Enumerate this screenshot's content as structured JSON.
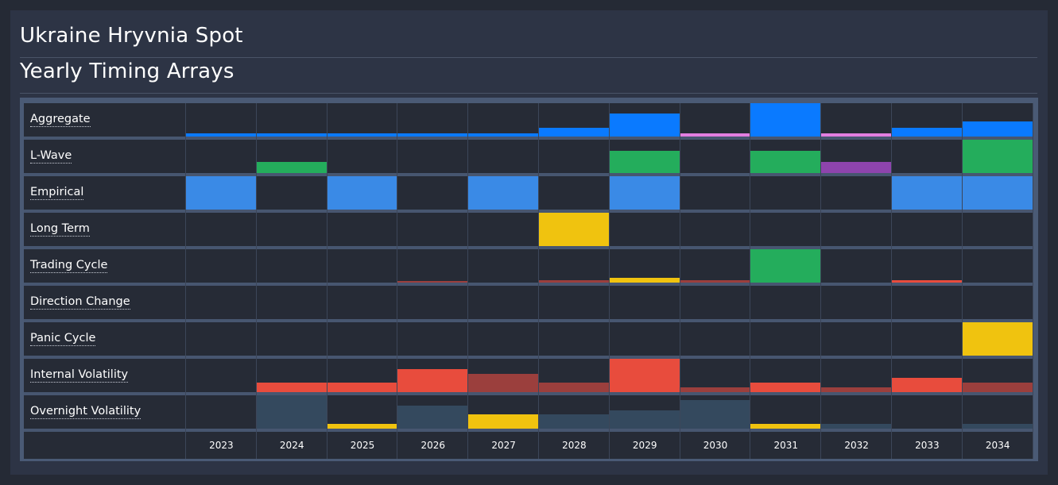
{
  "header": {
    "title": "Ukraine Hryvnia Spot",
    "subtitle": "Yearly Timing Arrays"
  },
  "chart_data": {
    "type": "heatmap",
    "years": [
      "2023",
      "2024",
      "2025",
      "2026",
      "2027",
      "2028",
      "2029",
      "2030",
      "2031",
      "2032",
      "2033",
      "2034"
    ],
    "colors": {
      "blue": "#0a7aff",
      "pink": "#e27ee0",
      "green": "#24ad5c",
      "purple": "#8e44ad",
      "emp_blue": "#3a8ae6",
      "yellow": "#f0c30f",
      "red": "#e84c3d",
      "dark_red": "#9b3f3d",
      "slate": "#34495e"
    },
    "rows": [
      {
        "label": "Aggregate",
        "cells": [
          {
            "v": 0.1,
            "c": "blue"
          },
          {
            "v": 0.1,
            "c": "blue"
          },
          {
            "v": 0.1,
            "c": "blue"
          },
          {
            "v": 0.1,
            "c": "blue"
          },
          {
            "v": 0.1,
            "c": "blue"
          },
          {
            "v": 0.25,
            "c": "blue"
          },
          {
            "v": 0.7,
            "c": "blue"
          },
          {
            "v": 0.1,
            "c": "pink"
          },
          {
            "v": 1.0,
            "c": "blue"
          },
          {
            "v": 0.1,
            "c": "pink"
          },
          {
            "v": 0.25,
            "c": "blue"
          },
          {
            "v": 0.45,
            "c": "blue"
          }
        ]
      },
      {
        "label": "L-Wave",
        "cells": [
          {
            "v": 0,
            "c": "green"
          },
          {
            "v": 0.33,
            "c": "green"
          },
          {
            "v": 0,
            "c": "green"
          },
          {
            "v": 0,
            "c": "green"
          },
          {
            "v": 0,
            "c": "green"
          },
          {
            "v": 0,
            "c": "green"
          },
          {
            "v": 0.67,
            "c": "green"
          },
          {
            "v": 0,
            "c": "green"
          },
          {
            "v": 0.67,
            "c": "green"
          },
          {
            "v": 0.33,
            "c": "purple"
          },
          {
            "v": 0,
            "c": "green"
          },
          {
            "v": 1.0,
            "c": "green"
          }
        ]
      },
      {
        "label": "Empirical",
        "cells": [
          {
            "v": 1,
            "c": "emp_blue"
          },
          {
            "v": 0,
            "c": "emp_blue"
          },
          {
            "v": 1,
            "c": "emp_blue"
          },
          {
            "v": 0,
            "c": "emp_blue"
          },
          {
            "v": 1,
            "c": "emp_blue"
          },
          {
            "v": 0,
            "c": "emp_blue"
          },
          {
            "v": 1,
            "c": "emp_blue"
          },
          {
            "v": 0,
            "c": "emp_blue"
          },
          {
            "v": 0,
            "c": "emp_blue"
          },
          {
            "v": 0,
            "c": "emp_blue"
          },
          {
            "v": 1,
            "c": "emp_blue"
          },
          {
            "v": 1,
            "c": "emp_blue"
          }
        ]
      },
      {
        "label": "Long Term",
        "cells": [
          {
            "v": 0,
            "c": "yellow"
          },
          {
            "v": 0,
            "c": "yellow"
          },
          {
            "v": 0,
            "c": "yellow"
          },
          {
            "v": 0,
            "c": "yellow"
          },
          {
            "v": 0,
            "c": "yellow"
          },
          {
            "v": 1,
            "c": "yellow"
          },
          {
            "v": 0,
            "c": "yellow"
          },
          {
            "v": 0,
            "c": "yellow"
          },
          {
            "v": 0,
            "c": "yellow"
          },
          {
            "v": 0,
            "c": "yellow"
          },
          {
            "v": 0,
            "c": "yellow"
          },
          {
            "v": 0,
            "c": "yellow"
          }
        ]
      },
      {
        "label": "Trading Cycle",
        "cells": [
          {
            "v": 0,
            "c": "red"
          },
          {
            "v": 0,
            "c": "red"
          },
          {
            "v": 0,
            "c": "red"
          },
          {
            "v": 0.04,
            "c": "dark_red"
          },
          {
            "v": 0,
            "c": "red"
          },
          {
            "v": 0.06,
            "c": "dark_red"
          },
          {
            "v": 0.15,
            "c": "yellow"
          },
          {
            "v": 0.06,
            "c": "dark_red"
          },
          {
            "v": 1.0,
            "c": "green"
          },
          {
            "v": 0,
            "c": "red"
          },
          {
            "v": 0.08,
            "c": "red"
          },
          {
            "v": 0,
            "c": "red"
          }
        ]
      },
      {
        "label": "Direction Change",
        "cells": [
          {
            "v": 0,
            "c": "red"
          },
          {
            "v": 0,
            "c": "red"
          },
          {
            "v": 0,
            "c": "red"
          },
          {
            "v": 0,
            "c": "red"
          },
          {
            "v": 0,
            "c": "red"
          },
          {
            "v": 0,
            "c": "red"
          },
          {
            "v": 0,
            "c": "red"
          },
          {
            "v": 0,
            "c": "red"
          },
          {
            "v": 0,
            "c": "red"
          },
          {
            "v": 0,
            "c": "red"
          },
          {
            "v": 0,
            "c": "red"
          },
          {
            "v": 0,
            "c": "red"
          }
        ]
      },
      {
        "label": "Panic Cycle",
        "cells": [
          {
            "v": 0,
            "c": "yellow"
          },
          {
            "v": 0,
            "c": "yellow"
          },
          {
            "v": 0,
            "c": "yellow"
          },
          {
            "v": 0,
            "c": "yellow"
          },
          {
            "v": 0,
            "c": "yellow"
          },
          {
            "v": 0,
            "c": "yellow"
          },
          {
            "v": 0,
            "c": "yellow"
          },
          {
            "v": 0,
            "c": "yellow"
          },
          {
            "v": 0,
            "c": "yellow"
          },
          {
            "v": 0,
            "c": "yellow"
          },
          {
            "v": 0,
            "c": "yellow"
          },
          {
            "v": 1,
            "c": "yellow"
          }
        ]
      },
      {
        "label": "Internal Volatility",
        "cells": [
          {
            "v": 0,
            "c": "red"
          },
          {
            "v": 0.28,
            "c": "red"
          },
          {
            "v": 0.28,
            "c": "red"
          },
          {
            "v": 0.7,
            "c": "red"
          },
          {
            "v": 0.55,
            "c": "dark_red"
          },
          {
            "v": 0.28,
            "c": "dark_red"
          },
          {
            "v": 1.0,
            "c": "red"
          },
          {
            "v": 0.14,
            "c": "dark_red"
          },
          {
            "v": 0.28,
            "c": "red"
          },
          {
            "v": 0.14,
            "c": "dark_red"
          },
          {
            "v": 0.42,
            "c": "red"
          },
          {
            "v": 0.28,
            "c": "dark_red"
          }
        ]
      },
      {
        "label": "Overnight Volatility",
        "cells": [
          {
            "v": 0,
            "c": "slate"
          },
          {
            "v": 1.0,
            "c": "slate"
          },
          {
            "v": 0.14,
            "c": "yellow"
          },
          {
            "v": 0.7,
            "c": "slate"
          },
          {
            "v": 0.42,
            "c": "yellow"
          },
          {
            "v": 0.42,
            "c": "slate"
          },
          {
            "v": 0.55,
            "c": "slate"
          },
          {
            "v": 0.85,
            "c": "slate"
          },
          {
            "v": 0.14,
            "c": "yellow"
          },
          {
            "v": 0.14,
            "c": "slate"
          },
          {
            "v": 0,
            "c": "slate"
          },
          {
            "v": 0.14,
            "c": "slate"
          }
        ]
      }
    ]
  }
}
